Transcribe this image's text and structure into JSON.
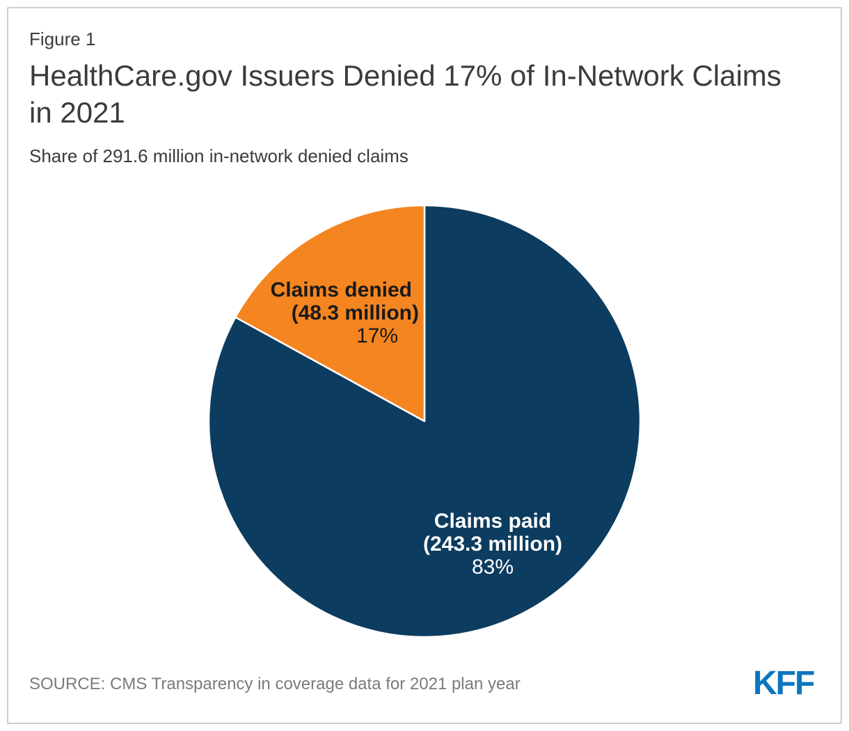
{
  "card": {
    "figure_label": "Figure 1",
    "title": "HealthCare.gov Issuers Denied 17% of In-Network Claims in 2021",
    "subtitle": "Share of 291.6 million in-network denied claims",
    "source": "SOURCE: CMS Transparency in coverage data for 2021 plan year",
    "logo_text": "KFF"
  },
  "colors": {
    "claims_paid_navy": "#0C3C5F",
    "claims_denied_orange": "#F58520",
    "slice_divider": "#FFFFFF",
    "title_text": "#3B3B3B",
    "source_text": "#7B7B7B",
    "card_border": "#CCCCCC",
    "kff_logo_blue": "#0B76BF"
  },
  "chart_data": {
    "type": "pie",
    "title": "HealthCare.gov Issuers Denied 17% of In-Network Claims in 2021",
    "subtitle": "Share of 291.6 million in-network denied claims",
    "total_value_millions": 291.6,
    "total_label": "291.6 million in-network claims",
    "start_angle_deg": 0,
    "direction": "clockwise-from-12-oclock",
    "legend_position": "labels-inside-slices",
    "grid": false,
    "slices": [
      {
        "name": "Claims paid",
        "detail": "(243.3 million)",
        "value_millions": 243.3,
        "percent": 83,
        "percent_label": "83%",
        "color": "#0C3C5F",
        "label_color": "#FFFFFF"
      },
      {
        "name": "Claims denied",
        "detail": "(48.3 million)",
        "value_millions": 48.3,
        "percent": 17,
        "percent_label": "17%",
        "color": "#F58520",
        "label_color": "#1A1A1A"
      }
    ]
  }
}
